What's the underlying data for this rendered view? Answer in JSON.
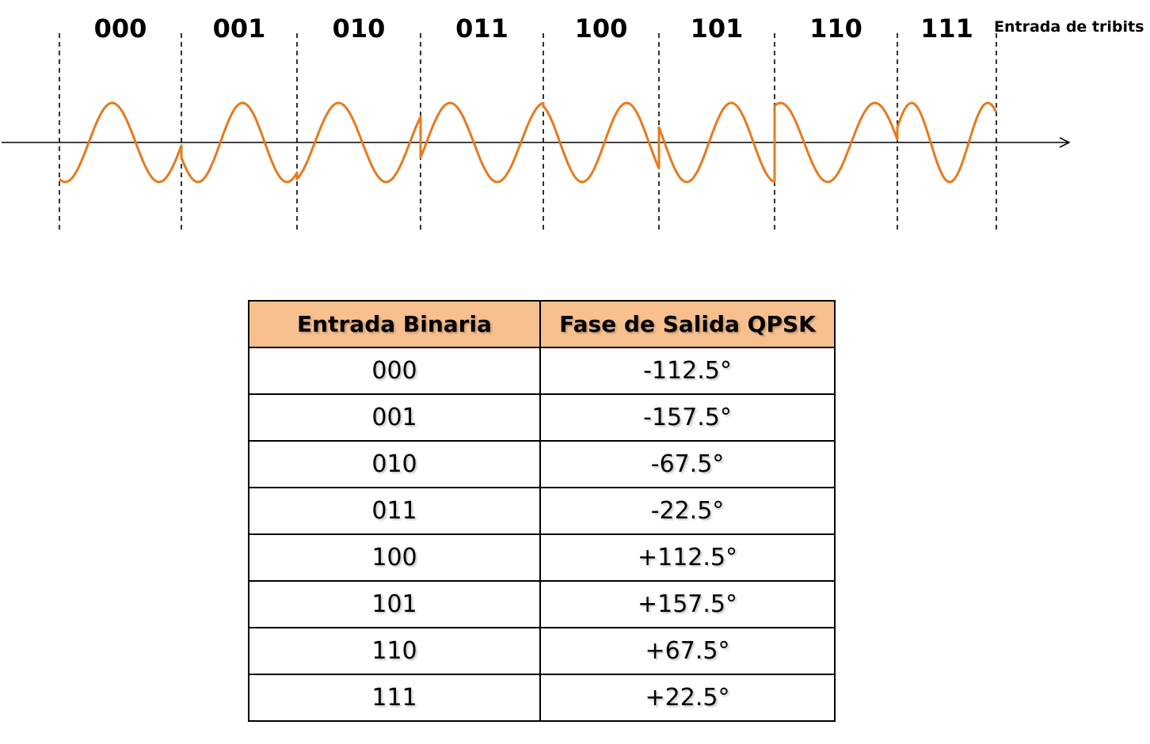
{
  "diagram": {
    "axis_caption": "Entrada de tribits",
    "wave_color": "#e57a1f",
    "segments": [
      {
        "label": "000",
        "phase": "-112.5°"
      },
      {
        "label": "001",
        "phase": "-157.5°"
      },
      {
        "label": "010",
        "phase": "-67.5°"
      },
      {
        "label": "011",
        "phase": "-22.5°"
      },
      {
        "label": "100",
        "phase": "+112.5°"
      },
      {
        "label": "101",
        "phase": "+157.5°"
      },
      {
        "label": "110",
        "phase": "+67.5°"
      },
      {
        "label": "111",
        "phase": "+22.5°"
      }
    ]
  },
  "table": {
    "header_bg": "#f9c08f",
    "headers": [
      "Entrada Binaria",
      "Fase de Salida QPSK"
    ],
    "rows": [
      {
        "input": "000",
        "phase": "-112.5°"
      },
      {
        "input": "001",
        "phase": "-157.5°"
      },
      {
        "input": "010",
        "phase": "-67.5°"
      },
      {
        "input": "011",
        "phase": "-22.5°"
      },
      {
        "input": "100",
        "phase": "+112.5°"
      },
      {
        "input": "101",
        "phase": "+157.5°"
      },
      {
        "input": "110",
        "phase": "+67.5°"
      },
      {
        "input": "111",
        "phase": "+22.5°"
      }
    ]
  }
}
